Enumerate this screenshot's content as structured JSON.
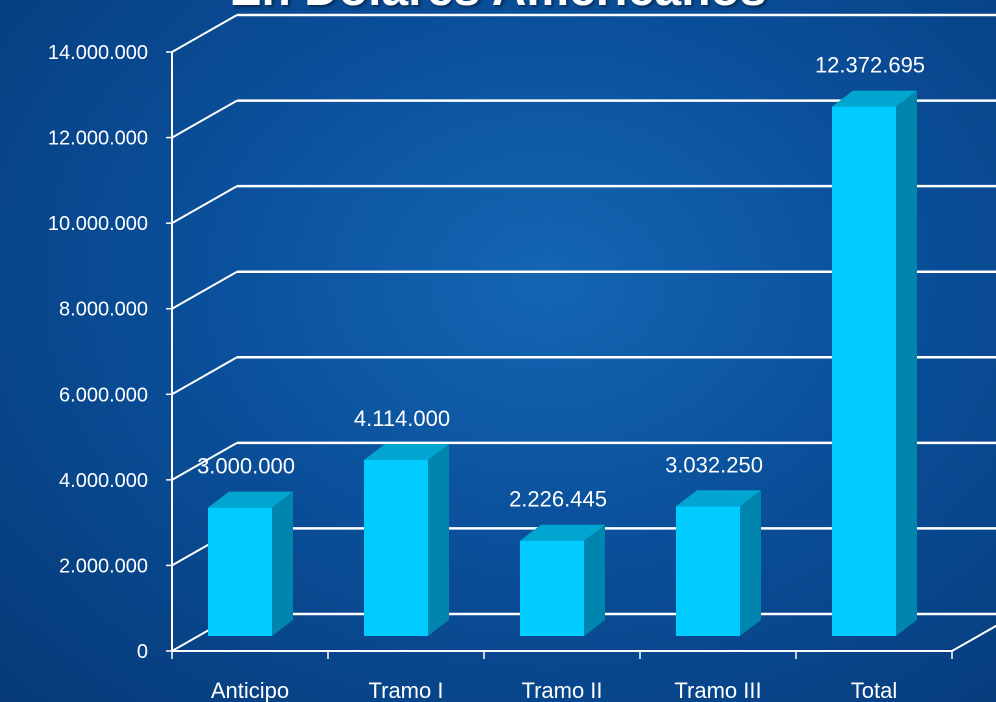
{
  "chart_data": {
    "type": "bar",
    "title": "En Dolares Americanos",
    "categories": [
      "Anticipo",
      "Tramo I",
      "Tramo II",
      "Tramo III",
      "Total"
    ],
    "values": [
      3000000,
      4114000,
      2226445,
      3032250,
      12372695
    ],
    "data_labels": [
      "3.000.000",
      "4.114.000",
      "2.226.445",
      "3.032.250",
      "12.372.695"
    ],
    "y_ticks": [
      0,
      2000000,
      4000000,
      6000000,
      8000000,
      10000000,
      12000000,
      14000000
    ],
    "y_tick_labels": [
      "0",
      "2.000.000",
      "4.000.000",
      "6.000.000",
      "8.000.000",
      "10.000.000",
      "12.000.000",
      "14.000.000"
    ],
    "ylim": [
      0,
      14000000
    ],
    "grid": true,
    "style": "3d-column",
    "colors": {
      "bar_front": "#00ccff",
      "bar_side": "#0086ae",
      "bar_top": "#00a6cf",
      "gridline": "#ffffff",
      "text": "#ffffff"
    }
  }
}
